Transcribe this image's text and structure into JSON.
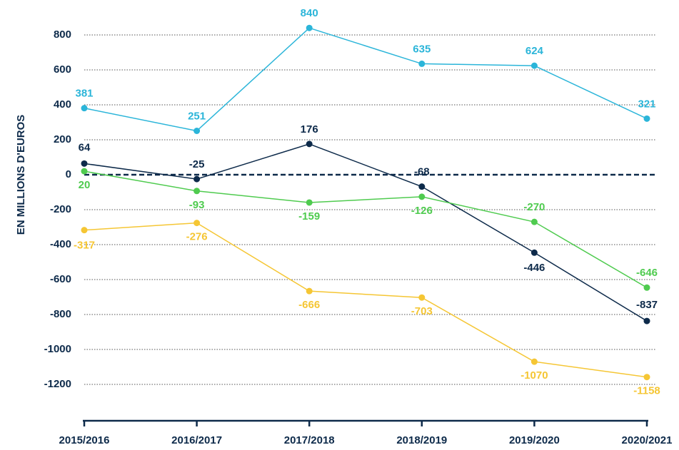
{
  "chart_data": {
    "type": "line",
    "y_label": "EN MILLIONS D'EUROS",
    "categories": [
      "2015/2016",
      "2016/2017",
      "2017/2018",
      "2018/2019",
      "2019/2020",
      "2020/2021"
    ],
    "series": [
      {
        "color": "#2bb5d9",
        "values": [
          381,
          251,
          840,
          635,
          624,
          321
        ]
      },
      {
        "color": "#0d2a4a",
        "values": [
          64,
          -25,
          176,
          -68,
          -446,
          -837
        ]
      },
      {
        "color": "#4fcb4f",
        "values": [
          20,
          -93,
          -159,
          -126,
          -270,
          -646
        ]
      },
      {
        "color": "#f5c634",
        "values": [
          -317,
          -276,
          -666,
          -703,
          -1070,
          -1158
        ]
      }
    ],
    "ylim": [
      -1400,
      1000
    ],
    "yticks": [
      800,
      600,
      400,
      200,
      0,
      -200,
      -400,
      -600,
      -800,
      -1000,
      -1200
    ],
    "grid": true
  }
}
